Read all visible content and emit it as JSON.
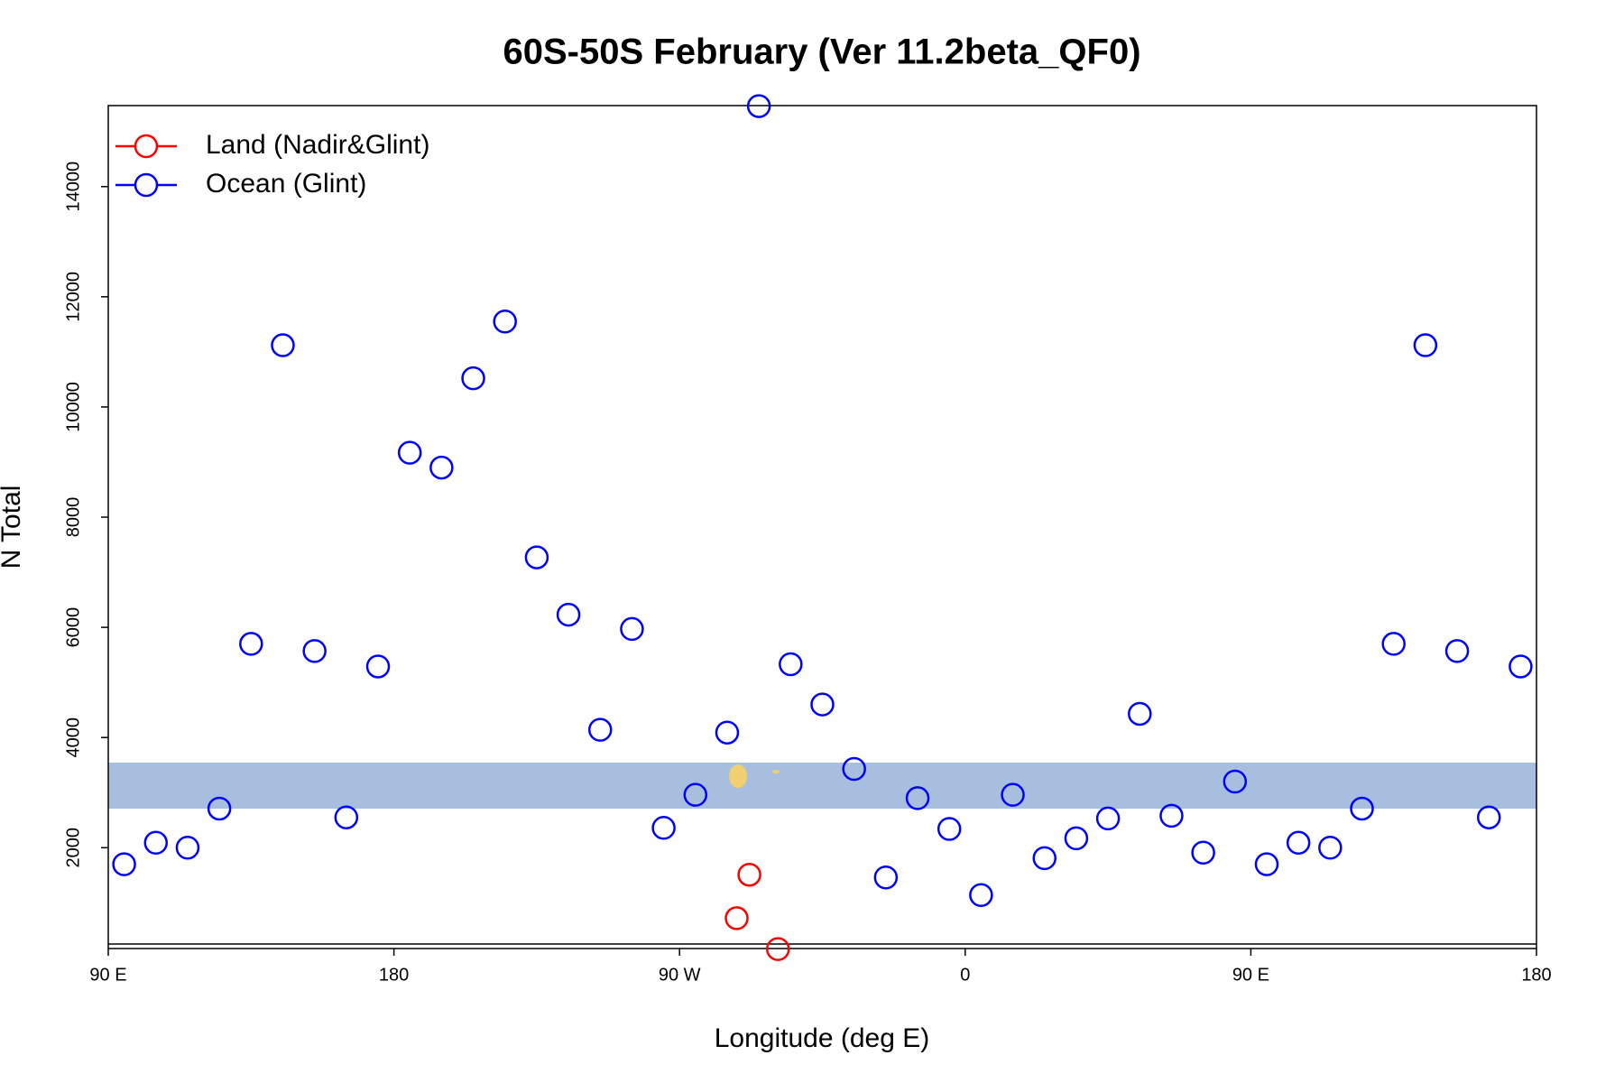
{
  "chart_data": {
    "type": "scatter",
    "title": "60S-50S February (Ver 11.2beta_QF0)",
    "x_label": "Longitude (deg E)",
    "y_label": "N Total",
    "xlim": [
      90,
      540
    ],
    "ylim": [
      170,
      15470
    ],
    "xticks": [
      {
        "value": 90,
        "label": "90 E"
      },
      180,
      {
        "value": 270,
        "label": "90 W"
      },
      {
        "value": 360,
        "label": "0"
      },
      {
        "value": 450,
        "label": "90 E"
      },
      {
        "value": 540,
        "label": "180"
      }
    ],
    "yticks": [
      2000,
      4000,
      6000,
      8000,
      10000,
      12000,
      14000
    ],
    "legend": "top-left",
    "series": [
      {
        "name": "Land (Nadir&Glint)",
        "color": "#ff0000",
        "x": [
          288,
          292,
          301
        ],
        "values": [
          720,
          1510,
          160
        ]
      },
      {
        "name": "Ocean (Glint)",
        "color": "#0000ff",
        "x": [
          95,
          105,
          115,
          125,
          135,
          145,
          155,
          165,
          175,
          185,
          195,
          205,
          215,
          225,
          235,
          245,
          255,
          265,
          275,
          285,
          295,
          305,
          315,
          325,
          335,
          345,
          355,
          365,
          375,
          385,
          395,
          405,
          415,
          425,
          435,
          445,
          455,
          465,
          475,
          485,
          495,
          505,
          515,
          525,
          535
        ],
        "values": [
          1700,
          2090,
          2000,
          2710,
          5700,
          11120,
          5570,
          2550,
          5290,
          9170,
          8900,
          10520,
          11550,
          7270,
          6230,
          4140,
          5970,
          2360,
          2960,
          4090,
          15460,
          5330,
          4600,
          3430,
          1460,
          2900,
          2340,
          1140,
          2960,
          1810,
          2170,
          2530,
          4430,
          2580,
          1910,
          3200,
          1700,
          2090,
          2000,
          2710,
          5700,
          11120,
          5570,
          2550,
          5290
        ]
      }
    ]
  }
}
